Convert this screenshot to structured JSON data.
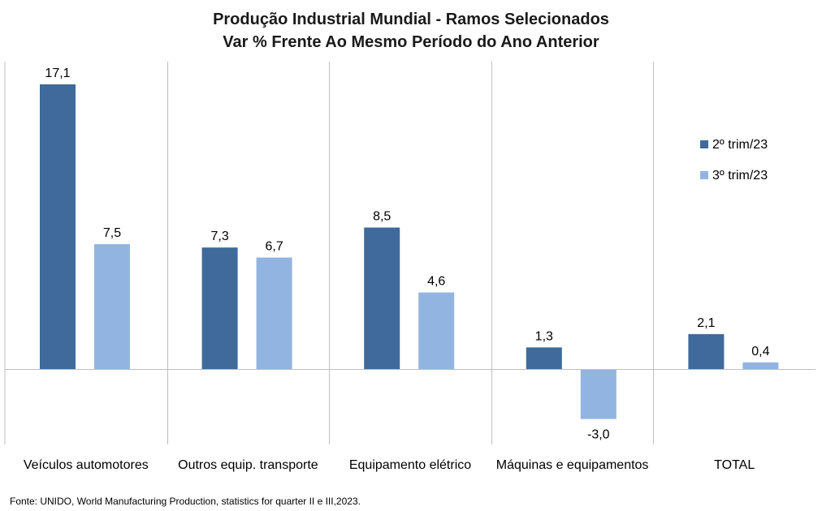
{
  "chart_data": {
    "type": "bar",
    "title": "Produção Industrial Mundial - Ramos Selecionados",
    "subtitle": "Var % Frente Ao Mesmo Período do Ano Anterior",
    "categories": [
      "Veículos automotores",
      "Outros equip. transporte",
      "Equipamento elétrico",
      "Máquinas e equipamentos",
      "TOTAL"
    ],
    "series": [
      {
        "name": "2º trim/23",
        "values": [
          17.1,
          7.3,
          8.5,
          1.3,
          2.1
        ],
        "labels": [
          "17,1",
          "7,3",
          "8,5",
          "1,3",
          "2,1"
        ],
        "color": "#3f6a9b"
      },
      {
        "name": "3º trim/23",
        "values": [
          7.5,
          6.7,
          4.6,
          -3.0,
          0.4
        ],
        "labels": [
          "7,5",
          "6,7",
          "4,6",
          "-3,0",
          "0,4"
        ],
        "color": "#92b4e1"
      }
    ],
    "ylim": [
      -4.5,
      18.5
    ],
    "legend": "right",
    "grid": false,
    "source": "Fonte: UNIDO, World Manufacturing Production, statistics for quarter II e III,2023."
  }
}
